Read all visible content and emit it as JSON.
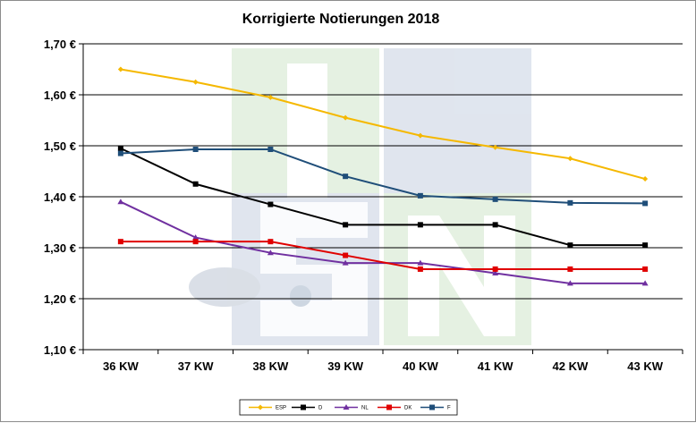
{
  "chart_data": {
    "type": "line",
    "title": "Korrigierte Notierungen 2018",
    "xlabel": "",
    "ylabel": "",
    "categories": [
      "36 KW",
      "37 KW",
      "38 KW",
      "39 KW",
      "40 KW",
      "41 KW",
      "42 KW",
      "43 KW"
    ],
    "y_ticks": [
      "1,10 €",
      "1,20 €",
      "1,30 €",
      "1,40 €",
      "1,50 €",
      "1,60 €",
      "1,70 €"
    ],
    "ylim": [
      1.1,
      1.7
    ],
    "grid": true,
    "legend_position": "bottom",
    "series": [
      {
        "name": "ESP",
        "color": "#f5b800",
        "marker": "diamond",
        "values": [
          1.65,
          1.625,
          1.595,
          1.555,
          1.52,
          1.497,
          1.475,
          1.435
        ]
      },
      {
        "name": "D",
        "color": "#000000",
        "marker": "square",
        "values": [
          1.495,
          1.425,
          1.385,
          1.345,
          1.345,
          1.345,
          1.305,
          1.305
        ]
      },
      {
        "name": "NL",
        "color": "#7030a0",
        "marker": "triangle",
        "values": [
          1.39,
          1.32,
          1.29,
          1.27,
          1.27,
          1.25,
          1.23,
          1.23
        ]
      },
      {
        "name": "DK",
        "color": "#e00000",
        "marker": "square",
        "values": [
          1.312,
          1.312,
          1.312,
          1.285,
          1.258,
          1.258,
          1.258,
          1.258
        ]
      },
      {
        "name": "F",
        "color": "#1f4e79",
        "marker": "square",
        "values": [
          1.485,
          1.493,
          1.493,
          1.44,
          1.402,
          1.395,
          1.388,
          1.387
        ]
      }
    ]
  }
}
